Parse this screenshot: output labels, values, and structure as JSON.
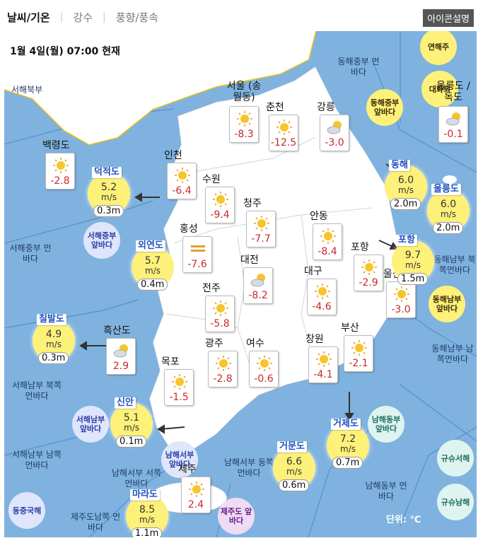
{
  "tabs": [
    {
      "label": "날씨/기온",
      "active": true
    },
    {
      "label": "강수",
      "active": false
    },
    {
      "label": "풍향/풍속",
      "active": false
    }
  ],
  "legend_button": "아이콘설명",
  "timestamp": "1월 4일(월) 07:00 현재",
  "unit_note": "단위: ℃",
  "sea_regions": [
    "서해북부",
    "동해중부 먼바다",
    "서해중부 먼바다",
    "서해남부 북쪽먼바다",
    "서해남부 남쪽먼바다",
    "남해서부 동쪽먼바다",
    "남해동부 먼바다",
    "동해남부 북쪽먼바다",
    "동해남부 남쪽먼바다",
    "제주도남쪽 먼바다",
    "남해서부 서쪽먼바다"
  ],
  "cities": [
    {
      "name": "백령도",
      "icon": "sun-icon",
      "temp": "-2.8"
    },
    {
      "name": "인천",
      "icon": "sun-icon",
      "temp": "-6.4"
    },
    {
      "name": "서울 (송월동)",
      "icon": "sun-icon",
      "temp": "-8.3"
    },
    {
      "name": "춘천",
      "icon": "sun-icon",
      "temp": "-12.5"
    },
    {
      "name": "강릉",
      "icon": "partly-cloudy-icon",
      "temp": "-3.0"
    },
    {
      "name": "울릉도 /독도",
      "icon": "partly-cloudy-icon",
      "temp": "-0.1"
    },
    {
      "name": "수원",
      "icon": "sun-icon",
      "temp": "-9.4"
    },
    {
      "name": "청주",
      "icon": "sun-icon",
      "temp": "-7.7"
    },
    {
      "name": "홍성",
      "icon": "haze-icon",
      "temp": "-7.6"
    },
    {
      "name": "안동",
      "icon": "sun-icon",
      "temp": "-8.4"
    },
    {
      "name": "대전",
      "icon": "partly-cloudy-icon",
      "temp": "-8.2"
    },
    {
      "name": "포항",
      "icon": "sun-icon",
      "temp": "-2.9"
    },
    {
      "name": "대구",
      "icon": "sun-icon",
      "temp": "-4.6"
    },
    {
      "name": "울산",
      "icon": "sun-icon",
      "temp": "-3.0"
    },
    {
      "name": "전주",
      "icon": "sun-icon",
      "temp": "-5.8"
    },
    {
      "name": "흑산도",
      "icon": "partly-cloudy-icon",
      "temp": "2.9"
    },
    {
      "name": "광주",
      "icon": "sun-icon",
      "temp": "-2.8"
    },
    {
      "name": "여수",
      "icon": "sun-icon",
      "temp": "-0.6"
    },
    {
      "name": "창원",
      "icon": "sun-icon",
      "temp": "-4.1"
    },
    {
      "name": "부산",
      "icon": "sun-icon",
      "temp": "-2.1"
    },
    {
      "name": "목포",
      "icon": "sun-icon",
      "temp": "-1.5"
    },
    {
      "name": "제주",
      "icon": "sun-icon",
      "temp": "2.4"
    }
  ],
  "buoys": [
    {
      "name": "덕적도",
      "wind_speed": "5.2",
      "unit": "m/s",
      "wave": "0.3m"
    },
    {
      "name": "외연도",
      "wind_speed": "5.7",
      "unit": "m/s",
      "wave": "0.4m"
    },
    {
      "name": "칠발도",
      "wind_speed": "4.9",
      "unit": "m/s",
      "wave": "0.3m"
    },
    {
      "name": "신안",
      "wind_speed": "5.1",
      "unit": "m/s",
      "wave": "0.1m"
    },
    {
      "name": "마라도",
      "wind_speed": "8.5",
      "unit": "m/s",
      "wave": "1.1m"
    },
    {
      "name": "거문도",
      "wind_speed": "6.6",
      "unit": "m/s",
      "wave": "0.6m"
    },
    {
      "name": "거제도",
      "wind_speed": "7.2",
      "unit": "m/s",
      "wave": "0.7m"
    },
    {
      "name": "포항",
      "wind_speed": "9.7",
      "unit": "m/s",
      "wave": "1.5m"
    },
    {
      "name": "동해",
      "wind_speed": "6.0",
      "unit": "m/s",
      "wave": "2.0m"
    },
    {
      "name": "울릉도",
      "wind_speed": "6.0",
      "unit": "m/s",
      "wave": "2.0m"
    }
  ],
  "region_badges": [
    {
      "label": "연해주",
      "style": "y"
    },
    {
      "label": "대화퇴",
      "style": "y"
    },
    {
      "label": "동해중부 앞바다",
      "style": "y"
    },
    {
      "label": "서해중부 앞바다",
      "style": "b"
    },
    {
      "label": "동해남부 앞바다",
      "style": "y"
    },
    {
      "label": "서해남부 앞바다",
      "style": "b"
    },
    {
      "label": "남해서부 앞바다",
      "style": "b"
    },
    {
      "label": "남해동부 앞바다",
      "style": "g"
    },
    {
      "label": "규슈서해",
      "style": "g"
    },
    {
      "label": "규슈남해",
      "style": "g"
    },
    {
      "label": "동중국해",
      "style": "b"
    },
    {
      "label": "제주도 앞바다",
      "style": "p"
    }
  ],
  "colors": {
    "sea": "#7fb2df",
    "land": "#ffffff",
    "temp": "#c7292b",
    "buoy": "#fdf17a",
    "boundary": "#f0c419"
  }
}
